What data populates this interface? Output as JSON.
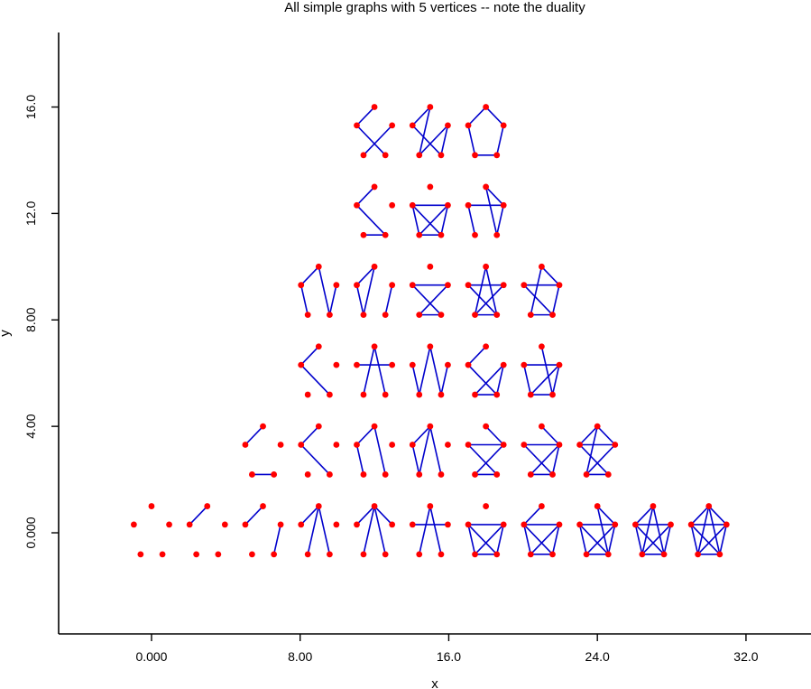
{
  "chart_data": {
    "type": "scatter",
    "title": "All simple graphs with 5 vertices -- note the duality",
    "xlabel": "x",
    "ylabel": "y",
    "xlim": [
      -5.0,
      35.5
    ],
    "ylim": [
      -3.8,
      18.8
    ],
    "x_ticks": [
      0,
      8,
      16,
      24,
      32
    ],
    "x_tick_labels": [
      "0.000",
      "8.00",
      "16.0",
      "24.0",
      "32.0"
    ],
    "y_ticks": [
      0,
      4,
      8,
      12,
      16
    ],
    "y_tick_labels": [
      "0.000",
      "4.00",
      "8.00",
      "12.0",
      "16.0"
    ],
    "grid": false,
    "colors": {
      "vertex": "#ff0000",
      "edge": "#0000cc"
    },
    "pentagon_offsets": [
      [
        0,
        1
      ],
      [
        0.951,
        0.309
      ],
      [
        0.588,
        -0.809
      ],
      [
        -0.588,
        -0.809
      ],
      [
        -0.951,
        0.309
      ]
    ],
    "graphs": [
      {
        "center": [
          0,
          0
        ],
        "edges": []
      },
      {
        "center": [
          3,
          0
        ],
        "edges": [
          [
            0,
            4
          ]
        ]
      },
      {
        "center": [
          6,
          0
        ],
        "edges": [
          [
            0,
            4
          ],
          [
            1,
            2
          ]
        ]
      },
      {
        "center": [
          9,
          0
        ],
        "edges": [
          [
            0,
            4
          ],
          [
            0,
            2
          ],
          [
            0,
            3
          ]
        ]
      },
      {
        "center": [
          12,
          0
        ],
        "edges": [
          [
            0,
            4
          ],
          [
            0,
            1
          ],
          [
            0,
            2
          ],
          [
            0,
            3
          ]
        ]
      },
      {
        "center": [
          15,
          0
        ],
        "edges": [
          [
            4,
            1
          ],
          [
            0,
            2
          ],
          [
            0,
            3
          ]
        ]
      },
      {
        "center": [
          18,
          0
        ],
        "edges": [
          [
            4,
            1
          ],
          [
            4,
            2
          ],
          [
            1,
            3
          ],
          [
            2,
            3
          ],
          [
            4,
            3
          ],
          [
            1,
            2
          ]
        ]
      },
      {
        "center": [
          21,
          0
        ],
        "edges": [
          [
            0,
            4
          ],
          [
            4,
            1
          ],
          [
            1,
            2
          ],
          [
            2,
            3
          ],
          [
            4,
            3
          ],
          [
            1,
            3
          ],
          [
            4,
            2
          ]
        ]
      },
      {
        "center": [
          24,
          0
        ],
        "edges": [
          [
            0,
            1
          ],
          [
            0,
            2
          ],
          [
            4,
            1
          ],
          [
            1,
            2
          ],
          [
            2,
            3
          ],
          [
            3,
            4
          ],
          [
            4,
            2
          ],
          [
            1,
            3
          ]
        ]
      },
      {
        "center": [
          27,
          0
        ],
        "edges": [
          [
            0,
            2
          ],
          [
            0,
            3
          ],
          [
            4,
            1
          ],
          [
            1,
            2
          ],
          [
            2,
            3
          ],
          [
            3,
            4
          ],
          [
            4,
            2
          ],
          [
            1,
            3
          ],
          [
            0,
            4
          ]
        ]
      },
      {
        "center": [
          30,
          0
        ],
        "edges": [
          [
            0,
            1
          ],
          [
            0,
            2
          ],
          [
            0,
            3
          ],
          [
            0,
            4
          ],
          [
            1,
            2
          ],
          [
            2,
            3
          ],
          [
            3,
            4
          ],
          [
            4,
            1
          ],
          [
            1,
            3
          ],
          [
            2,
            4
          ]
        ]
      },
      {
        "center": [
          6,
          3
        ],
        "edges": [
          [
            4,
            0
          ],
          [
            2,
            3
          ]
        ]
      },
      {
        "center": [
          9,
          3
        ],
        "edges": [
          [
            0,
            4
          ],
          [
            4,
            2
          ]
        ]
      },
      {
        "center": [
          12,
          3
        ],
        "edges": [
          [
            0,
            4
          ],
          [
            0,
            2
          ],
          [
            4,
            3
          ]
        ]
      },
      {
        "center": [
          15,
          3
        ],
        "edges": [
          [
            0,
            4
          ],
          [
            0,
            2
          ],
          [
            0,
            3
          ],
          [
            4,
            3
          ]
        ]
      },
      {
        "center": [
          18,
          3
        ],
        "edges": [
          [
            0,
            1
          ],
          [
            4,
            1
          ],
          [
            4,
            2
          ],
          [
            1,
            3
          ],
          [
            2,
            3
          ]
        ]
      },
      {
        "center": [
          21,
          3
        ],
        "edges": [
          [
            0,
            1
          ],
          [
            4,
            1
          ],
          [
            4,
            2
          ],
          [
            1,
            3
          ],
          [
            2,
            3
          ],
          [
            1,
            2
          ]
        ]
      },
      {
        "center": [
          24,
          3
        ],
        "edges": [
          [
            0,
            4
          ],
          [
            0,
            1
          ],
          [
            4,
            1
          ],
          [
            4,
            2
          ],
          [
            1,
            3
          ],
          [
            2,
            3
          ],
          [
            0,
            3
          ]
        ]
      },
      {
        "center": [
          9,
          6
        ],
        "edges": [
          [
            0,
            4
          ],
          [
            4,
            2
          ]
        ]
      },
      {
        "center": [
          12,
          6
        ],
        "edges": [
          [
            0,
            3
          ],
          [
            0,
            2
          ],
          [
            4,
            1
          ]
        ]
      },
      {
        "center": [
          15,
          6
        ],
        "edges": [
          [
            0,
            2
          ],
          [
            0,
            3
          ],
          [
            4,
            3
          ],
          [
            1,
            2
          ]
        ]
      },
      {
        "center": [
          18,
          6
        ],
        "edges": [
          [
            0,
            4
          ],
          [
            4,
            2
          ],
          [
            1,
            3
          ],
          [
            2,
            3
          ],
          [
            1,
            2
          ]
        ]
      },
      {
        "center": [
          21,
          6
        ],
        "edges": [
          [
            0,
            2
          ],
          [
            4,
            1
          ],
          [
            1,
            2
          ],
          [
            3,
            4
          ],
          [
            2,
            3
          ],
          [
            1,
            3
          ]
        ]
      },
      {
        "center": [
          9,
          9
        ],
        "edges": [
          [
            0,
            4
          ],
          [
            4,
            3
          ],
          [
            0,
            2
          ],
          [
            1,
            2
          ]
        ]
      },
      {
        "center": [
          12,
          9
        ],
        "edges": [
          [
            0,
            4
          ],
          [
            0,
            3
          ],
          [
            4,
            3
          ],
          [
            1,
            2
          ]
        ]
      },
      {
        "center": [
          15,
          9
        ],
        "edges": [
          [
            4,
            1
          ],
          [
            4,
            2
          ],
          [
            1,
            3
          ],
          [
            2,
            3
          ]
        ]
      },
      {
        "center": [
          18,
          9
        ],
        "edges": [
          [
            0,
            2
          ],
          [
            0,
            3
          ],
          [
            4,
            1
          ],
          [
            4,
            2
          ],
          [
            1,
            3
          ],
          [
            2,
            3
          ]
        ]
      },
      {
        "center": [
          21,
          9
        ],
        "edges": [
          [
            0,
            1
          ],
          [
            0,
            3
          ],
          [
            4,
            1
          ],
          [
            1,
            2
          ],
          [
            2,
            3
          ],
          [
            4,
            2
          ]
        ]
      },
      {
        "center": [
          12,
          12
        ],
        "edges": [
          [
            0,
            4
          ],
          [
            4,
            2
          ],
          [
            2,
            3
          ]
        ]
      },
      {
        "center": [
          15,
          12
        ],
        "edges": [
          [
            4,
            1
          ],
          [
            4,
            2
          ],
          [
            1,
            3
          ],
          [
            2,
            3
          ],
          [
            4,
            3
          ],
          [
            1,
            2
          ]
        ]
      },
      {
        "center": [
          18,
          12
        ],
        "edges": [
          [
            0,
            1
          ],
          [
            0,
            2
          ],
          [
            4,
            1
          ],
          [
            4,
            3
          ],
          [
            1,
            2
          ]
        ]
      },
      {
        "center": [
          12,
          15
        ],
        "edges": [
          [
            0,
            4
          ],
          [
            4,
            2
          ],
          [
            1,
            3
          ]
        ]
      },
      {
        "center": [
          15,
          15
        ],
        "edges": [
          [
            0,
            4
          ],
          [
            0,
            3
          ],
          [
            4,
            2
          ],
          [
            1,
            3
          ],
          [
            1,
            2
          ]
        ]
      },
      {
        "center": [
          18,
          15
        ],
        "edges": [
          [
            0,
            4
          ],
          [
            0,
            1
          ],
          [
            4,
            3
          ],
          [
            1,
            2
          ],
          [
            2,
            3
          ]
        ]
      }
    ]
  }
}
